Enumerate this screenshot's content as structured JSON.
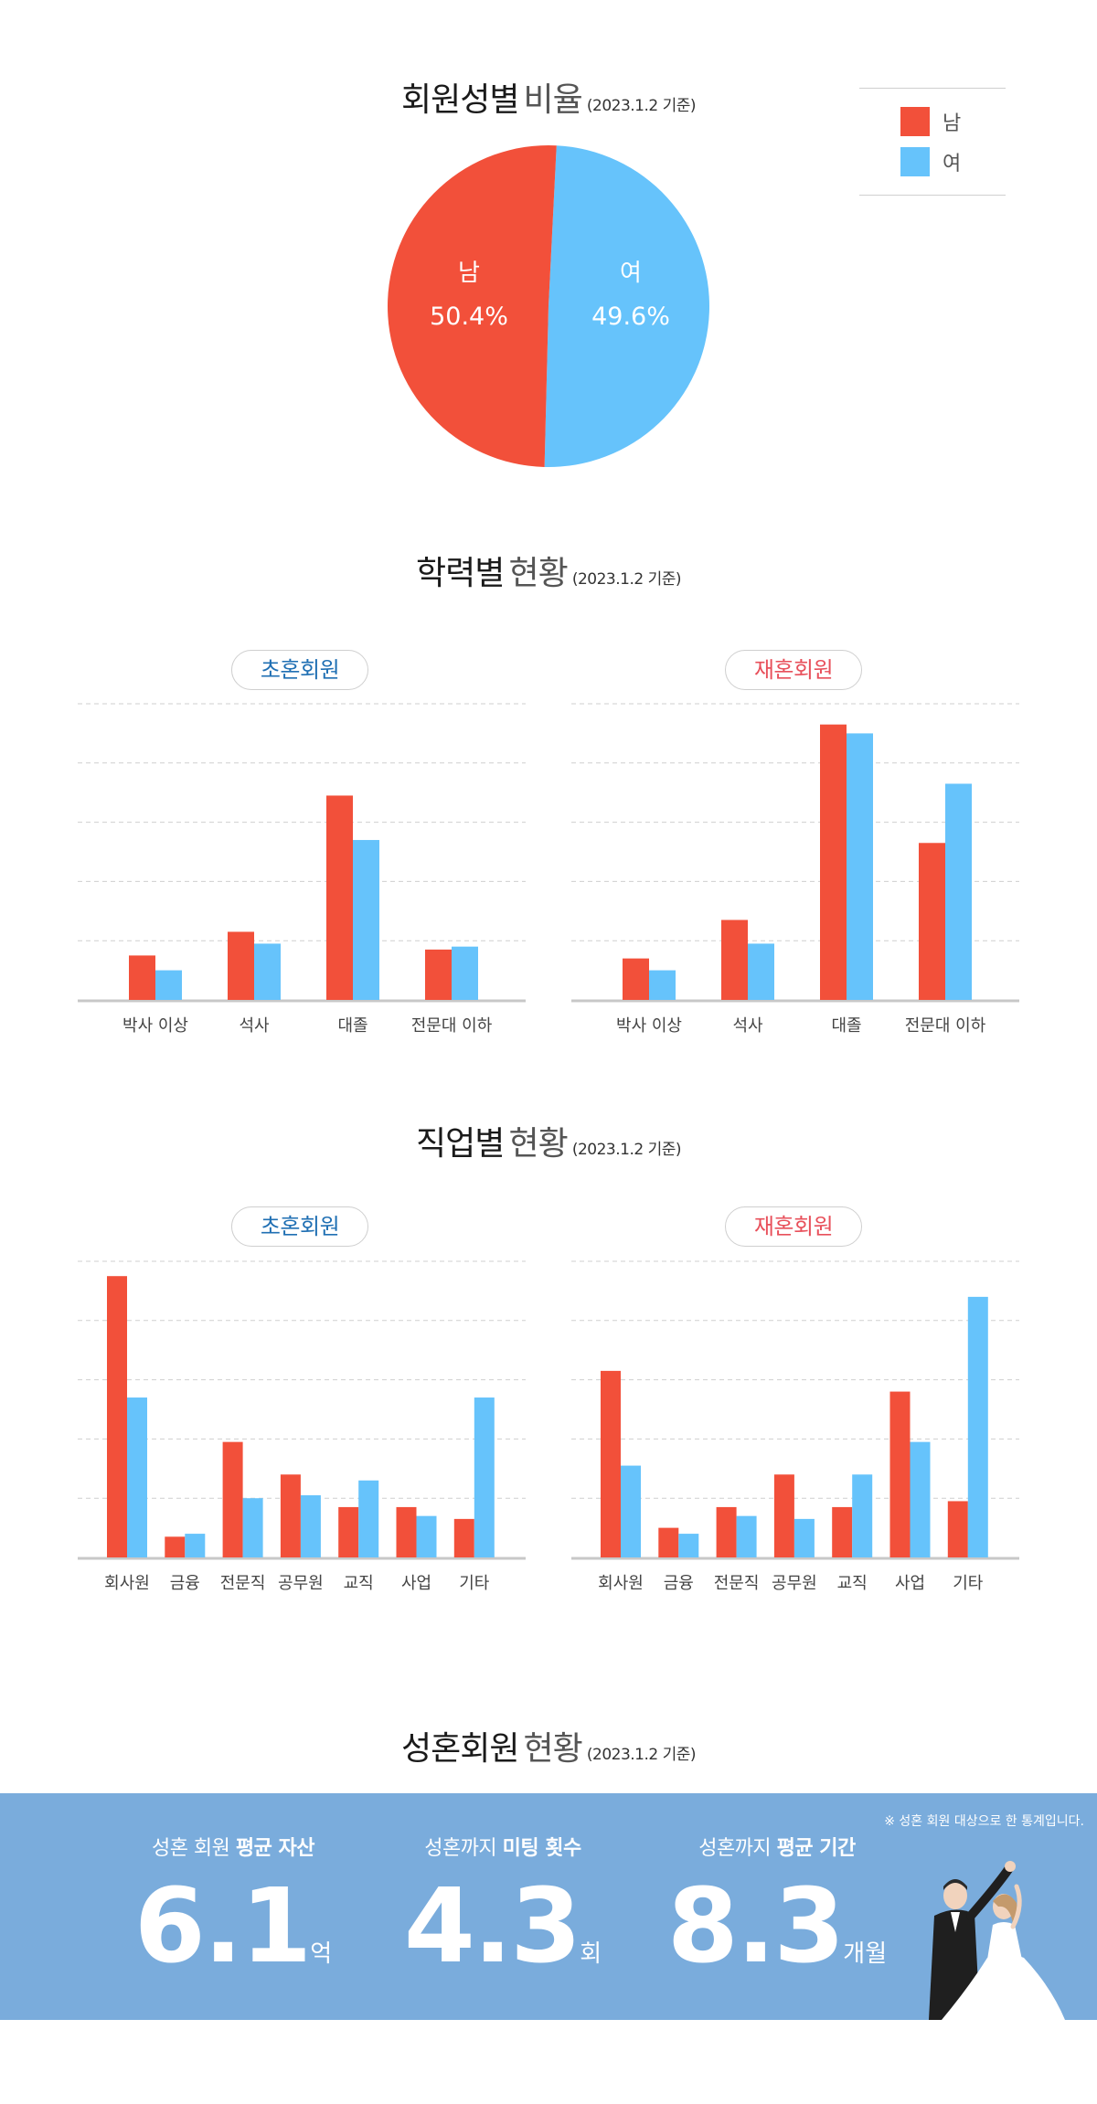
{
  "gender": {
    "title_main": "회원성별",
    "title_sub": "비율",
    "date": "(2023.1.2 기준)",
    "legend": [
      {
        "label": "남",
        "color": "#f2503a"
      },
      {
        "label": "여",
        "color": "#66c3fb"
      }
    ]
  },
  "education": {
    "title_main": "학력별",
    "title_sub": "현황",
    "date": "(2023.1.2 기준)",
    "first_label": "초혼회원",
    "re_label": "재혼회원"
  },
  "occupation": {
    "title_main": "직업별",
    "title_sub": "현황",
    "date": "(2023.1.2 기준)",
    "first_label": "초혼회원",
    "re_label": "재혼회원"
  },
  "married": {
    "title_main": "성혼회원",
    "title_sub": "현황",
    "date": "(2023.1.2 기준)",
    "note": "※ 성혼 회원 대상으로 한 통계입니다.",
    "stats": [
      {
        "label_plain": "성혼 회원",
        "label_bold": "평균 자산",
        "value": "6.1",
        "unit": "억"
      },
      {
        "label_plain": "성혼까지",
        "label_bold": "미팅 횟수",
        "value": "4.3",
        "unit": "회"
      },
      {
        "label_plain": "성혼까지",
        "label_bold": "평균 기간",
        "value": "8.3",
        "unit": "개월"
      }
    ]
  },
  "colors": {
    "male": "#f2503a",
    "female": "#66c3fb",
    "first_accent": "#1f6fb3",
    "re_accent": "#e8505b",
    "banner": "#7aacdc"
  },
  "chart_data": [
    {
      "id": "gender-pie",
      "type": "pie",
      "categories": [
        "남",
        "여"
      ],
      "values": [
        50.4,
        49.6
      ],
      "value_labels": [
        "50.4%",
        "49.6%"
      ],
      "colors": [
        "#f2503a",
        "#66c3fb"
      ],
      "legend": "top-right"
    },
    {
      "id": "edu-first",
      "type": "bar",
      "categories": [
        "박사 이상",
        "석사",
        "대졸",
        "전문대 이하"
      ],
      "series": [
        {
          "values": [
            15,
            23,
            69,
            17
          ],
          "color": "#f2503a"
        },
        {
          "values": [
            10,
            19,
            54,
            18
          ],
          "color": "#66c3fb"
        }
      ],
      "ylim": [
        0,
        100
      ],
      "grid": true
    },
    {
      "id": "edu-re",
      "type": "bar",
      "categories": [
        "박사 이상",
        "석사",
        "대졸",
        "전문대 이하"
      ],
      "series": [
        {
          "values": [
            14,
            27,
            93,
            53
          ],
          "color": "#f2503a"
        },
        {
          "values": [
            10,
            19,
            90,
            73
          ],
          "color": "#66c3fb"
        }
      ],
      "ylim": [
        0,
        100
      ],
      "grid": true
    },
    {
      "id": "job-first",
      "type": "bar",
      "categories": [
        "회사원",
        "금융",
        "전문직",
        "공무원",
        "교직",
        "사업",
        "기타"
      ],
      "series": [
        {
          "values": [
            95,
            7,
            39,
            28,
            17,
            17,
            13
          ],
          "color": "#f2503a"
        },
        {
          "values": [
            54,
            8,
            20,
            21,
            26,
            14,
            54
          ],
          "color": "#66c3fb"
        }
      ],
      "ylim": [
        0,
        100
      ],
      "grid": true
    },
    {
      "id": "job-re",
      "type": "bar",
      "categories": [
        "회사원",
        "금융",
        "전문직",
        "공무원",
        "교직",
        "사업",
        "기타"
      ],
      "series": [
        {
          "values": [
            63,
            10,
            17,
            28,
            17,
            56,
            19
          ],
          "color": "#f2503a"
        },
        {
          "values": [
            31,
            8,
            14,
            13,
            28,
            39,
            88
          ],
          "color": "#66c3fb"
        }
      ],
      "ylim": [
        0,
        100
      ],
      "grid": true
    }
  ]
}
